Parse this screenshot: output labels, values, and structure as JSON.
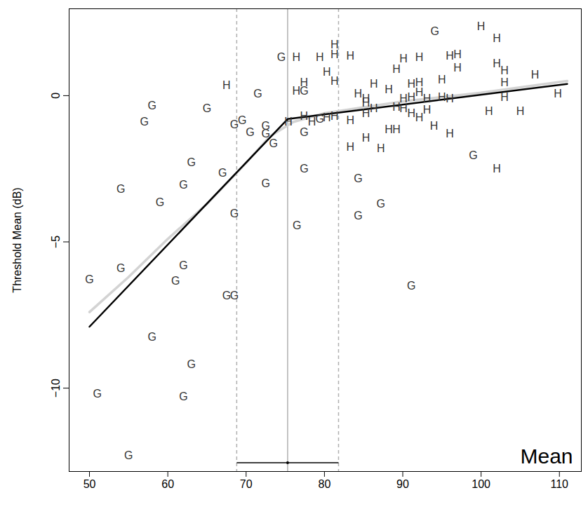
{
  "chart_data": {
    "type": "scatter",
    "y_label": "Threshold Mean (dB)",
    "annotation": "Mean",
    "xlim": [
      47.4,
      112.8
    ],
    "ylim": [
      -12.85,
      2.97
    ],
    "xticks": [
      50,
      60,
      70,
      80,
      90,
      100,
      110
    ],
    "yticks": [
      0,
      -5,
      -10
    ],
    "series": [
      {
        "name": "G",
        "type": "scatter",
        "marker": "G",
        "color": "#333333",
        "x": [
          50,
          51,
          55,
          54,
          54,
          57,
          58,
          58,
          59,
          61,
          62,
          62,
          62,
          63,
          63,
          65,
          67,
          67.5,
          68.5,
          68.5,
          68.5,
          69.5,
          70.5,
          71.5,
          72.5,
          72.5,
          72.5,
          73.5,
          74.5,
          76.5,
          77.4,
          77.4,
          77.4,
          79.4,
          84.3,
          84.3,
          87.2,
          91.1,
          94.1,
          99
        ],
        "y": [
          -6.3,
          -10.2,
          -12.3,
          -5.9,
          -3.2,
          -0.9,
          -0.35,
          -8.25,
          -3.65,
          -6.35,
          -5.8,
          -3.05,
          -10.3,
          -2.3,
          -9.2,
          -0.45,
          -2.65,
          -6.85,
          -6.85,
          -4.05,
          -1.0,
          -0.85,
          -1.25,
          0.05,
          -1.05,
          -1.3,
          -3.0,
          -1.65,
          1.3,
          -4.45,
          0.15,
          -1.25,
          -2.5,
          -0.8,
          -2.85,
          -4.1,
          -3.7,
          -6.5,
          2.2,
          -2.05
        ]
      },
      {
        "name": "H",
        "type": "scatter",
        "marker": "H",
        "color": "#333333",
        "x": [
          67.5,
          76.4,
          77.4,
          76.4,
          75.4,
          77.4,
          78.4,
          79.4,
          80.3,
          81.3,
          81.3,
          81.3,
          80.3,
          81.3,
          83.3,
          83.3,
          83.3,
          84.3,
          85.3,
          85.3,
          85.3,
          85.3,
          86.3,
          86.3,
          87.2,
          88.2,
          88.2,
          89.2,
          89.2,
          89.2,
          90.1,
          90.1,
          90.1,
          91.1,
          91.1,
          91.1,
          92.1,
          92.1,
          92.1,
          92.1,
          93.1,
          93.1,
          94,
          95,
          95,
          96,
          96,
          97,
          97,
          96,
          100,
          101,
          102,
          102,
          102,
          103,
          103,
          103,
          105,
          106.9,
          109.8
        ],
        "y": [
          0.35,
          1.3,
          0.45,
          0.15,
          -0.9,
          -0.7,
          -0.9,
          1.3,
          0.8,
          1.4,
          1.75,
          0.5,
          -0.75,
          -0.7,
          1.35,
          -0.85,
          -1.75,
          0.05,
          -0.1,
          -0.25,
          -1.45,
          -0.6,
          -0.45,
          0.4,
          -1.8,
          0.2,
          -1.15,
          -1.15,
          0.9,
          -0.4,
          1.25,
          -0.1,
          -0.45,
          -0.05,
          0.4,
          -0.6,
          1.3,
          0.45,
          0.1,
          -0.75,
          -0.5,
          -0.1,
          -1.05,
          0.55,
          -0.05,
          -1.3,
          1.35,
          1.4,
          0.95,
          -0.1,
          2.35,
          -0.55,
          1.95,
          1.1,
          -2.5,
          0.85,
          -0.05,
          0.45,
          -0.55,
          0.7,
          0.05
        ]
      },
      {
        "type": "line",
        "color": "#d3d3d3",
        "line_style": "solid",
        "x": [
          50,
          55,
          60,
          65,
          70,
          73,
          76,
          78,
          80,
          90,
          100,
          111
        ],
        "y": [
          -7.4,
          -6.2,
          -4.9,
          -3.7,
          -2.3,
          -1.4,
          -0.9,
          -0.75,
          -0.6,
          -0.2,
          0.1,
          0.5
        ]
      },
      {
        "type": "line",
        "color": "#000000",
        "line_style": "solid",
        "x": [
          50,
          75.3,
          111
        ],
        "y": [
          -7.9,
          -0.8,
          0.4
        ]
      }
    ],
    "breakpoint": {
      "estimate": 75.3,
      "ci": [
        68.8,
        81.8
      ],
      "ci_y": -12.55
    }
  }
}
